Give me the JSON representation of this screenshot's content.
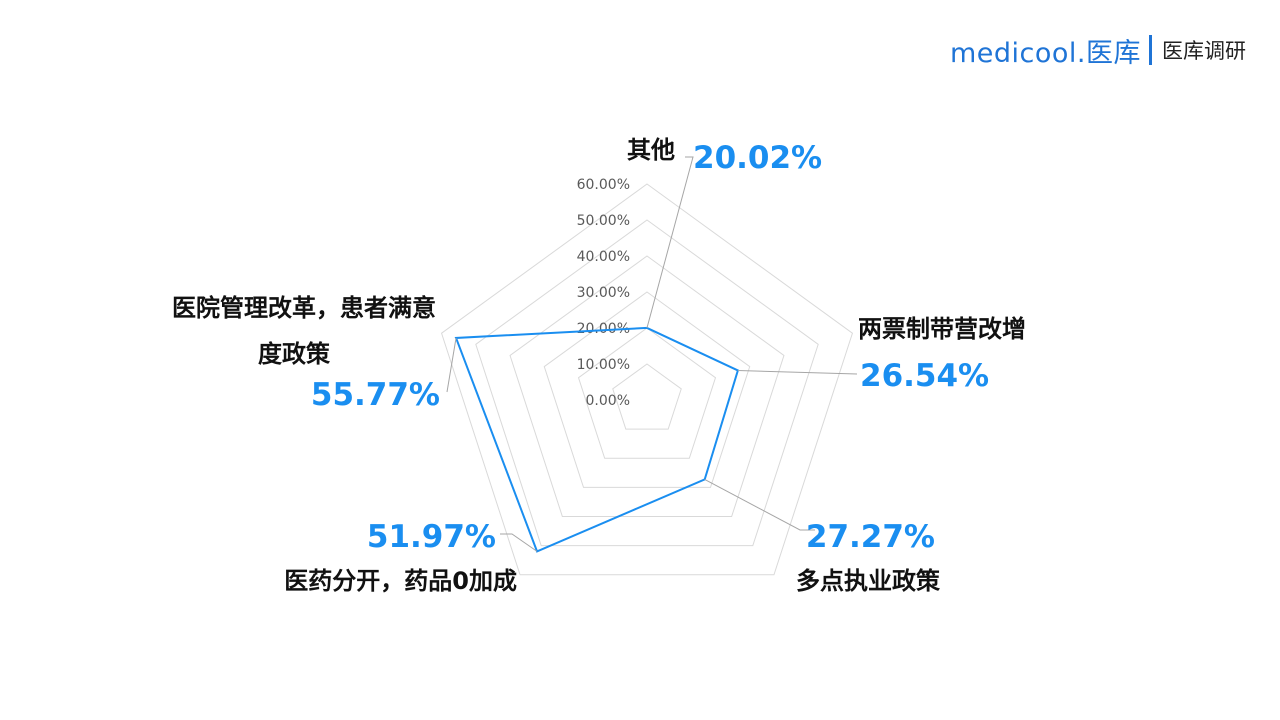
{
  "brand": {
    "logo": "medicool.医库",
    "subtitle": "医库调研"
  },
  "chart_data": {
    "type": "radar",
    "categories": [
      "其他",
      "两票制带营改增",
      "多点执业政策",
      "医药分开，药品0加成",
      "医院管理改革，患者满意度政策"
    ],
    "category_lines": [
      [
        "其他"
      ],
      [
        "两票制带营改增"
      ],
      [
        "多点执业政策"
      ],
      [
        "医药分开，药品0加成"
      ],
      [
        "医院管理改革，患者满意",
        "度政策"
      ]
    ],
    "values": [
      20.02,
      26.54,
      27.27,
      51.97,
      55.77
    ],
    "value_labels": [
      "20.02%",
      "26.54%",
      "27.27%",
      "51.97%",
      "55.77%"
    ],
    "ticks": [
      "0.00%",
      "10.00%",
      "20.00%",
      "30.00%",
      "40.00%",
      "50.00%",
      "60.00%"
    ],
    "rmax": 60,
    "grid": true,
    "series_color": "#1a8ef0",
    "grid_color": "#d9d9d9"
  }
}
